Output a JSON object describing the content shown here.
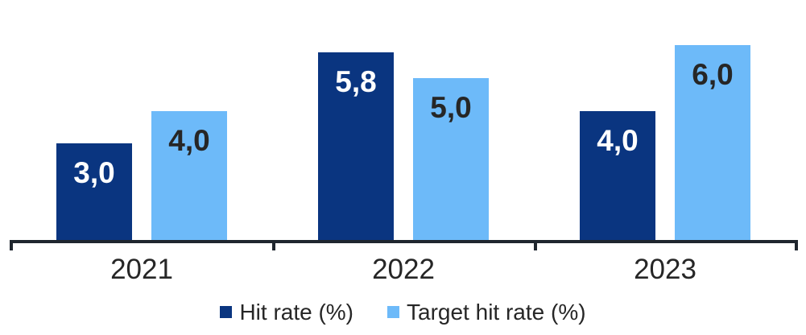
{
  "chart_data": {
    "type": "bar",
    "categories": [
      "2021",
      "2022",
      "2023"
    ],
    "series": [
      {
        "name": "Hit rate (%)",
        "values": [
          3.0,
          5.8,
          4.0
        ],
        "labels": [
          "3,0",
          "5,8",
          "4,0"
        ],
        "color": "#0A3580",
        "label_color": "#FFFFFF"
      },
      {
        "name": "Target hit rate (%)",
        "values": [
          4.0,
          5.0,
          6.0
        ],
        "labels": [
          "4,0",
          "5,0",
          "6,0"
        ],
        "color": "#6DBAF9",
        "label_color": "#262626"
      }
    ],
    "title": "",
    "xlabel": "",
    "ylabel": "",
    "ylim": [
      0,
      7
    ],
    "grid": false,
    "legend_position": "bottom",
    "value_labels": "inside-top",
    "decimal_separator": ",",
    "axis_color": "#1F262E",
    "text_color": "#262626",
    "background_color": "#FFFFFF"
  }
}
